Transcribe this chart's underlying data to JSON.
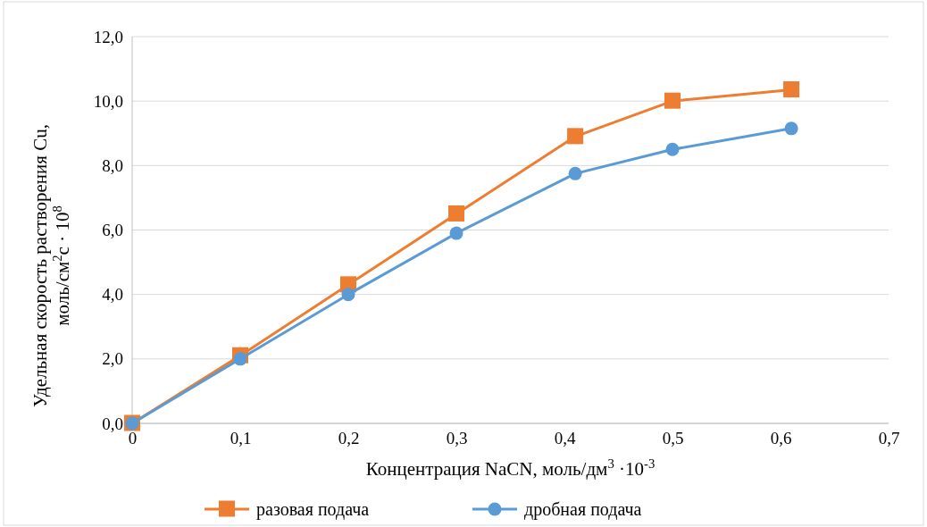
{
  "chart_data": {
    "type": "line",
    "xlabel": "Концентрация NaCN, моль/дм$^{3}$ ·10$^{-3}$",
    "ylabel": "Удельная скорость растворения Cu, моль/см$^{2}$с · 10$^{8}$",
    "x": [
      0,
      0.1,
      0.2,
      0.3,
      0.41,
      0.5,
      0.61
    ],
    "xlim": [
      0,
      0.7
    ],
    "xticks": [
      0,
      {
        "value": 0.1,
        "label": "0,1"
      },
      {
        "value": 0.2,
        "label": "0,2"
      },
      {
        "value": 0.3,
        "label": "0,3"
      },
      {
        "value": 0.4,
        "label": "0,4"
      },
      {
        "value": 0.5,
        "label": "0,5"
      },
      {
        "value": 0.6,
        "label": "0,6"
      },
      {
        "value": 0.7,
        "label": "0,7"
      }
    ],
    "ylim": [
      0,
      12
    ],
    "yticks": [
      {
        "value": 0,
        "label": "0,0"
      },
      {
        "value": 2,
        "label": "2,0"
      },
      {
        "value": 4,
        "label": "4,0"
      },
      {
        "value": 6,
        "label": "6,0"
      },
      {
        "value": 8,
        "label": "8,0"
      },
      {
        "value": 10,
        "label": "10,0"
      },
      {
        "value": 12,
        "label": "12,0"
      }
    ],
    "grid": "y",
    "legend": "bottom",
    "line_style": "solid",
    "series": [
      {
        "name": "разовая подача",
        "color": "#ed7d31",
        "marker": "square",
        "values": [
          0,
          2.1,
          4.3,
          6.5,
          8.9,
          10.0,
          10.35
        ]
      },
      {
        "name": "дробная подача",
        "color": "#5b9bd5",
        "marker": "circle",
        "values": [
          0,
          2.0,
          4.0,
          5.9,
          7.75,
          8.5,
          9.15
        ]
      }
    ]
  }
}
